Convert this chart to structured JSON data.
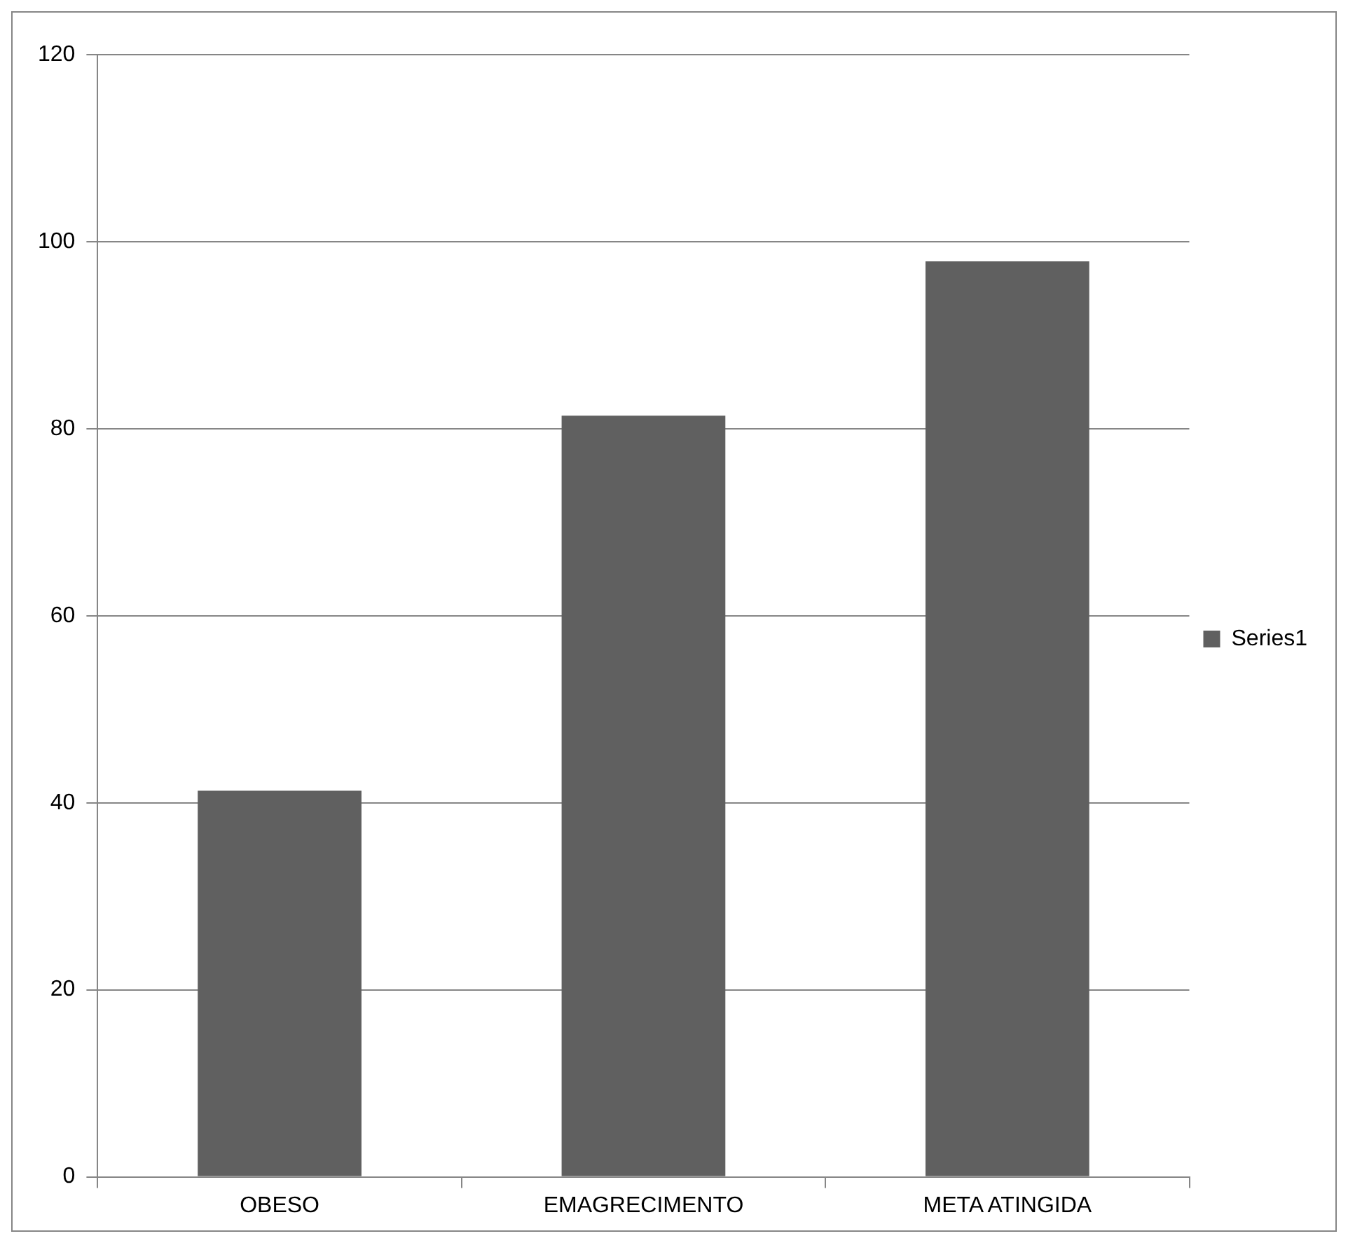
{
  "chart_data": {
    "type": "bar",
    "categories": [
      "OBESO",
      "EMAGRECIMENTO",
      "META ATINGIDA"
    ],
    "series": [
      {
        "name": "Series1",
        "color": "#606060",
        "values": [
          41.3,
          81.4,
          97.9
        ]
      }
    ],
    "ylim": [
      0,
      120
    ],
    "yticks": [
      0,
      20,
      40,
      60,
      80,
      100,
      120
    ],
    "grid": "y",
    "legend": "right"
  }
}
